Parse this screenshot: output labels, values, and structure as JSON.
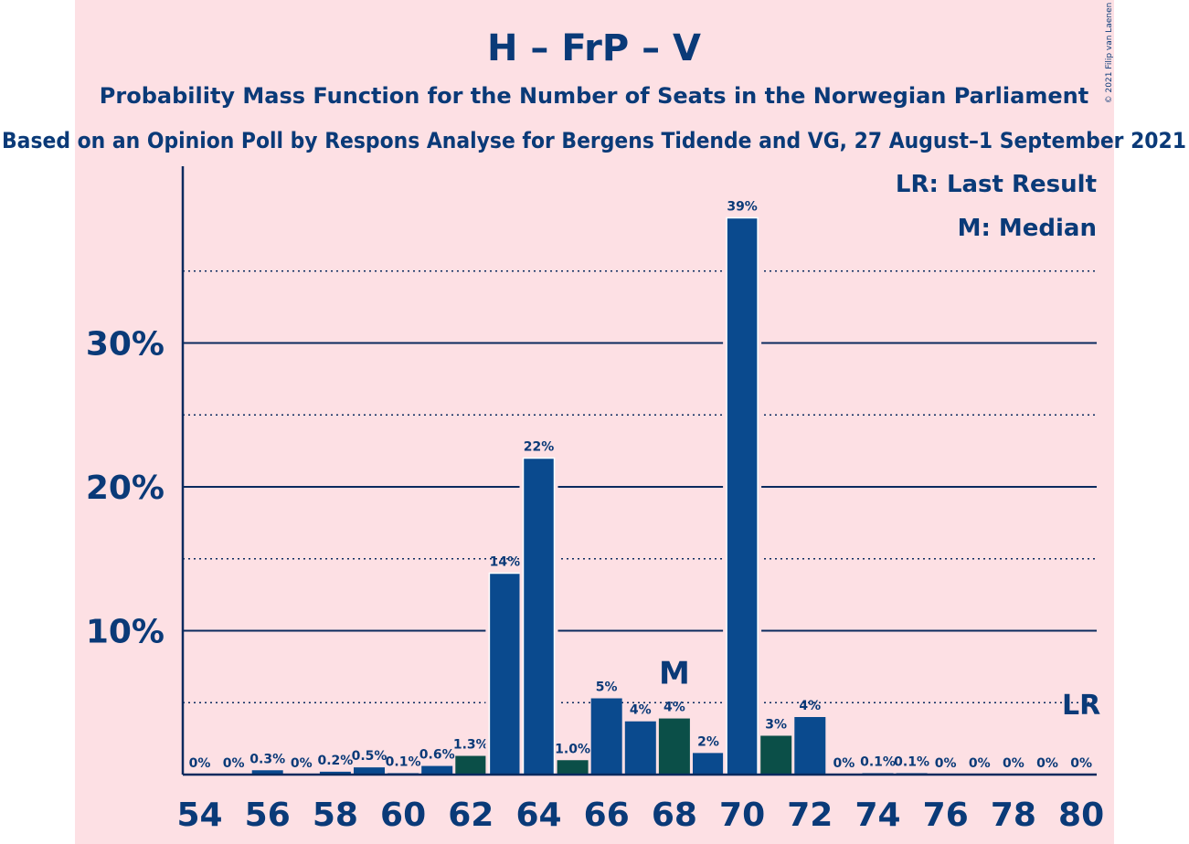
{
  "chart_data": {
    "type": "bar",
    "title": "H – FrP – V",
    "subtitle": "Probability Mass Function for the Number of Seats in the Norwegian Parliament",
    "subtitle2": "Based on an Opinion Poll by Respons Analyse for Bergens Tidende and VG, 27 August–1 September 2021",
    "copyright": "© 2021 Filip van Laenen",
    "legend": {
      "lr": "LR: Last Result",
      "m": "M: Median",
      "placement": "top-right"
    },
    "ylim": [
      0,
      42
    ],
    "y_ticks": [
      {
        "value": 10,
        "label": "10%"
      },
      {
        "value": 20,
        "label": "20%"
      },
      {
        "value": 30,
        "label": "30%"
      }
    ],
    "x_ticks": [
      54,
      56,
      58,
      60,
      62,
      64,
      66,
      68,
      70,
      72,
      74,
      76,
      78,
      80
    ],
    "x_tick_labels": [
      "54",
      "56",
      "58",
      "60",
      "62",
      "64",
      "66",
      "68",
      "70",
      "72",
      "74",
      "76",
      "78",
      "80"
    ],
    "median": {
      "x": 68,
      "label": "M"
    },
    "last_result": {
      "x": 80,
      "label": "LR"
    },
    "colors": {
      "blue": "#0a4a8e",
      "green": "#0b4f48",
      "axis": "#0a2a5e",
      "text": "#0a3a78",
      "background": "#fde0e4"
    },
    "bars": [
      {
        "x": 54,
        "value": 0,
        "label": "0%"
      },
      {
        "x": 55,
        "value": 0,
        "label": "0%"
      },
      {
        "x": 56,
        "value": 0.3,
        "label": "0.3%"
      },
      {
        "x": 57,
        "value": 0,
        "label": "0%"
      },
      {
        "x": 58,
        "value": 0.2,
        "label": "0.2%"
      },
      {
        "x": 59,
        "value": 0.5,
        "label": "0.5%"
      },
      {
        "x": 60,
        "value": 0.1,
        "label": "0.1%"
      },
      {
        "x": 61,
        "value": 0.6,
        "label": "0.6%"
      },
      {
        "x": 62,
        "value": 1.3,
        "label": "1.3%"
      },
      {
        "x": 63,
        "value": 14,
        "label": "14%"
      },
      {
        "x": 64,
        "value": 22,
        "label": "22%"
      },
      {
        "x": 65,
        "value": 1.0,
        "label": "1.0%"
      },
      {
        "x": 66,
        "value": 5.3,
        "label": "5%"
      },
      {
        "x": 67,
        "value": 3.7,
        "label": "4%"
      },
      {
        "x": 68,
        "value": 3.9,
        "label": "4%"
      },
      {
        "x": 69,
        "value": 1.5,
        "label": "2%"
      },
      {
        "x": 70,
        "value": 38.7,
        "label": "39%"
      },
      {
        "x": 71,
        "value": 2.7,
        "label": "3%"
      },
      {
        "x": 72,
        "value": 4.0,
        "label": "4%"
      },
      {
        "x": 73,
        "value": 0,
        "label": "0%"
      },
      {
        "x": 74,
        "value": 0.1,
        "label": "0.1%"
      },
      {
        "x": 75,
        "value": 0.1,
        "label": "0.1%"
      },
      {
        "x": 76,
        "value": 0,
        "label": "0%"
      },
      {
        "x": 77,
        "value": 0,
        "label": "0%"
      },
      {
        "x": 78,
        "value": 0,
        "label": "0%"
      },
      {
        "x": 79,
        "value": 0,
        "label": "0%"
      },
      {
        "x": 80,
        "value": 0,
        "label": "0%"
      }
    ]
  }
}
